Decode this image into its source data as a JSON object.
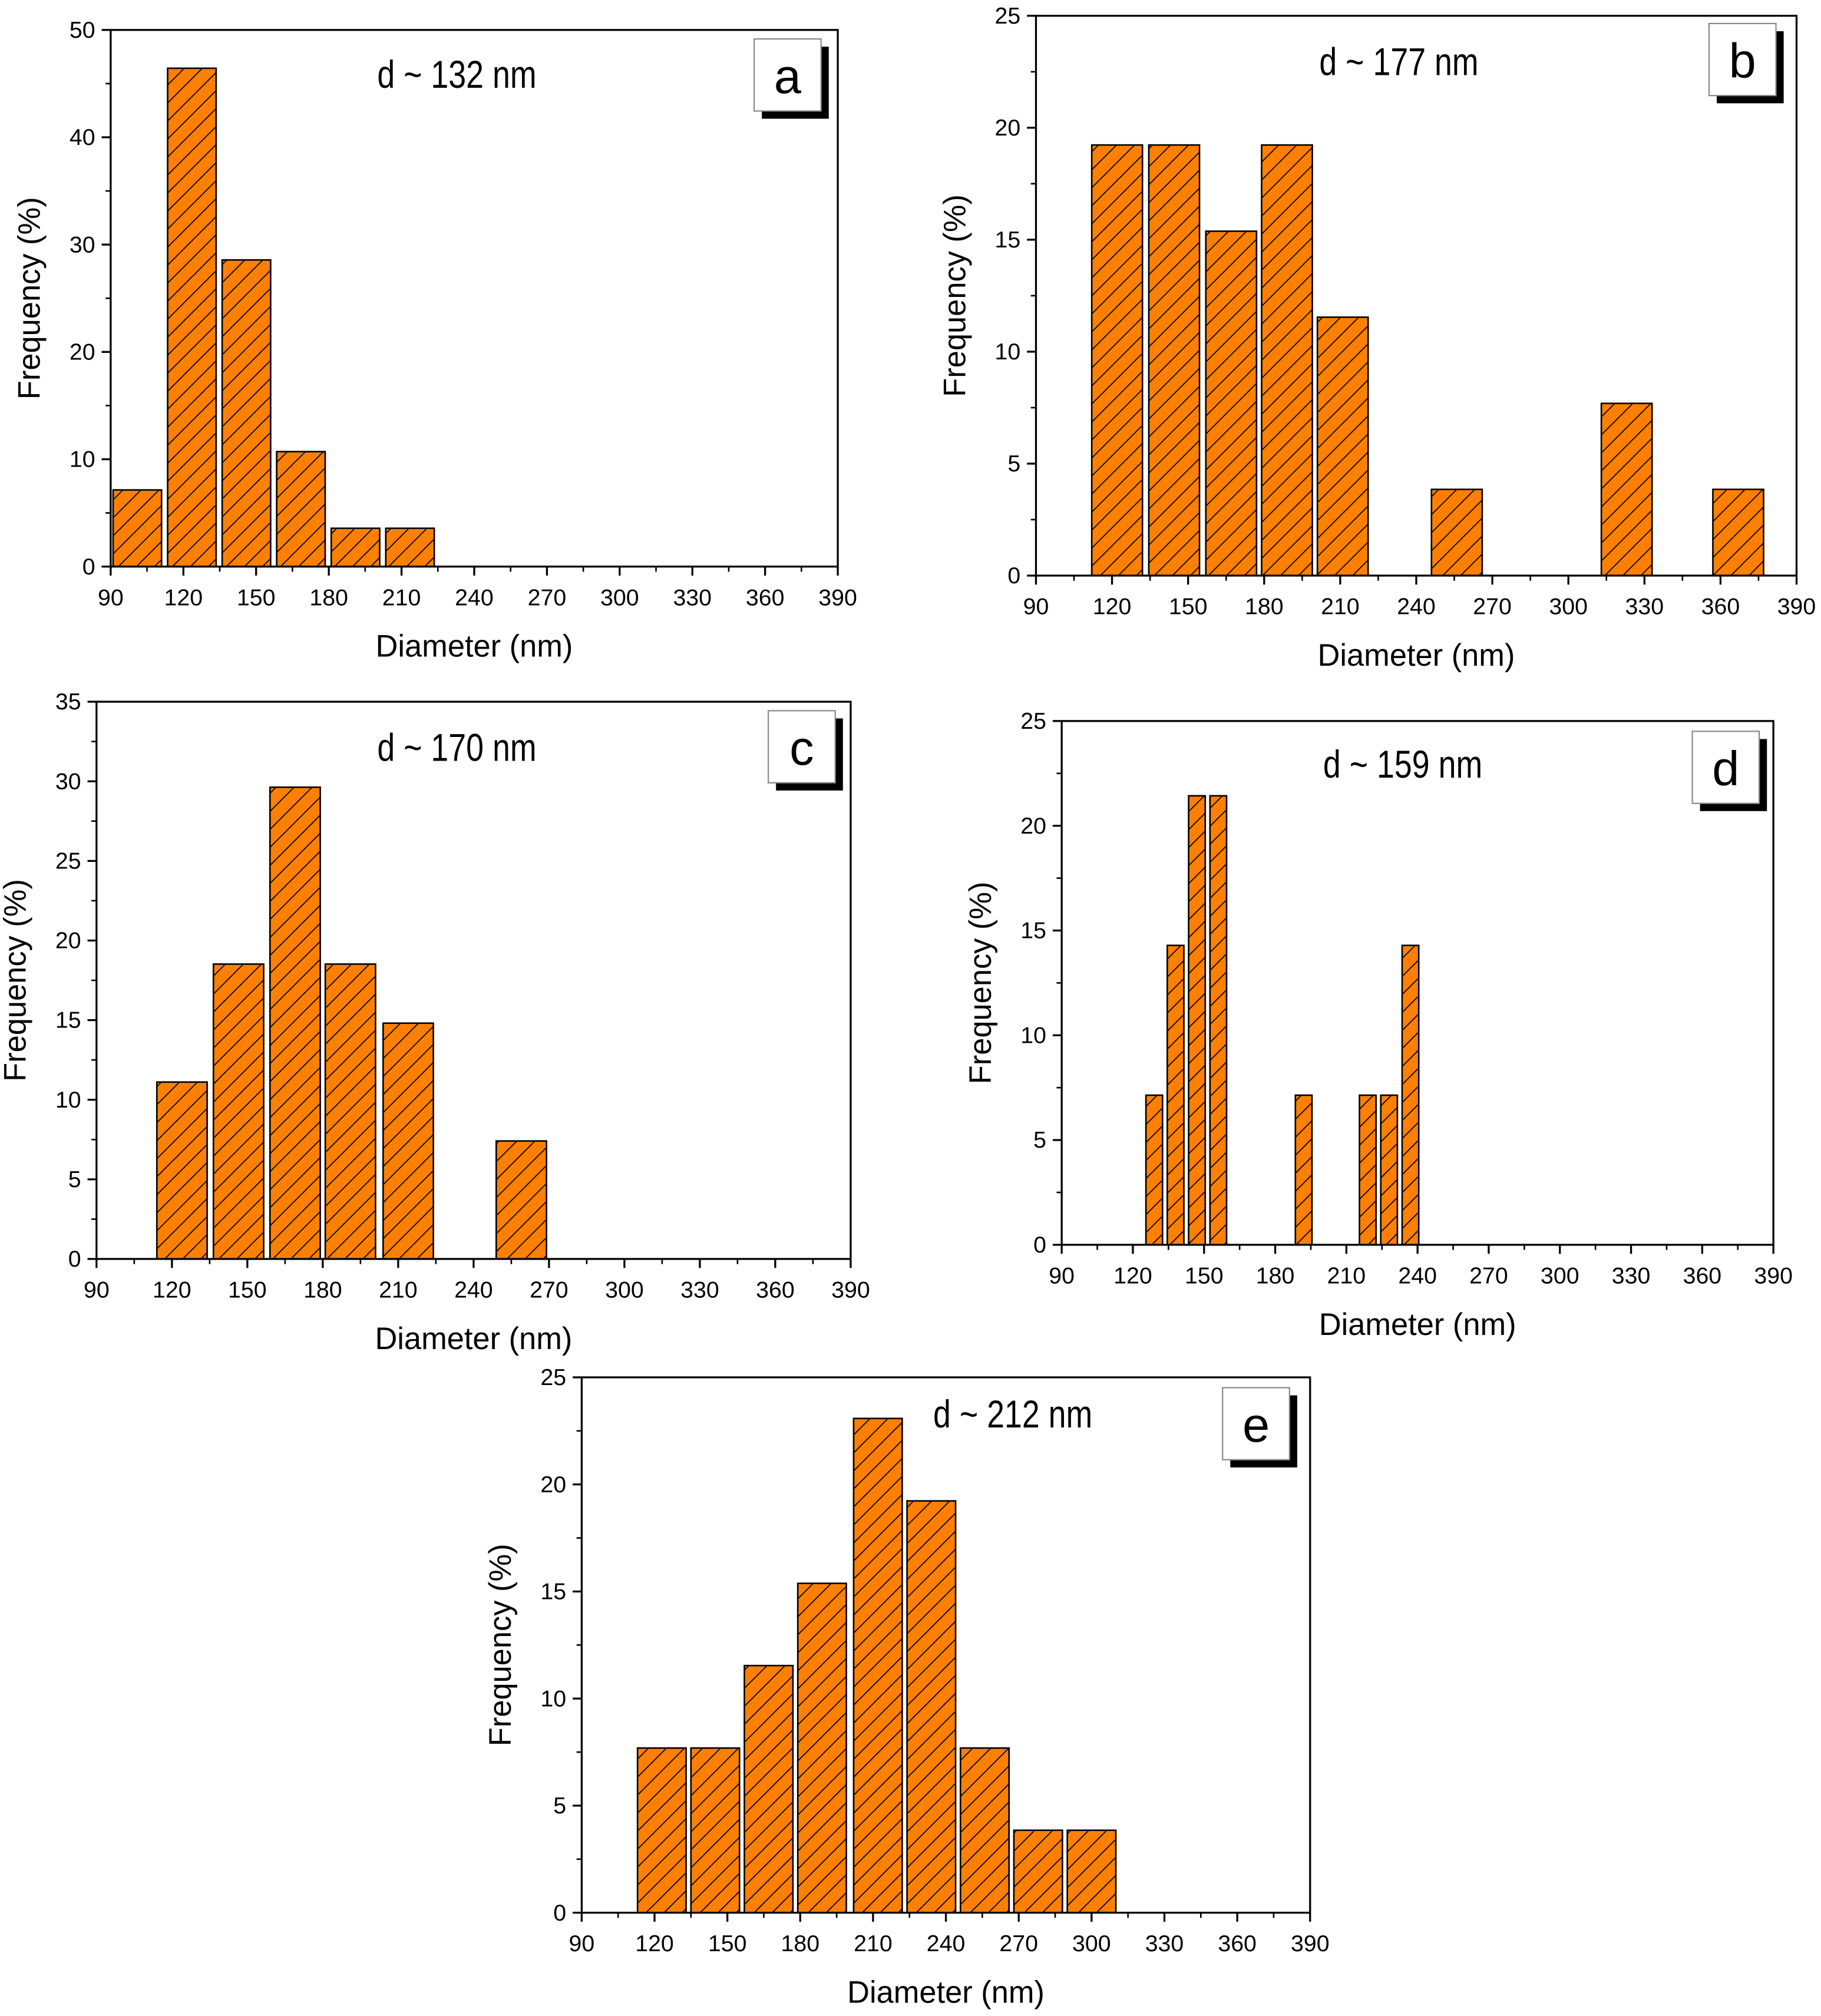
{
  "chart_data": [
    {
      "id": "a",
      "type": "bar",
      "panel_label": "a",
      "annotation": "d ~ 132 nm",
      "xlabel": "Diameter (nm)",
      "ylabel": "Frequency (%)",
      "xlim": [
        90,
        390
      ],
      "ylim": [
        0,
        50
      ],
      "xticks": [
        90,
        120,
        150,
        180,
        210,
        240,
        270,
        300,
        330,
        360,
        390
      ],
      "yticks": [
        0,
        10,
        20,
        30,
        40,
        50
      ],
      "bin_width": 20,
      "x": [
        101,
        123.5,
        146,
        168.5,
        191,
        213.5
      ],
      "values": [
        7.14,
        46.43,
        28.57,
        10.71,
        3.57,
        3.57
      ]
    },
    {
      "id": "b",
      "type": "bar",
      "panel_label": "b",
      "annotation": "d ~ 177 nm",
      "xlabel": "Diameter (nm)",
      "ylabel": "Frequency (%)",
      "xlim": [
        90,
        390
      ],
      "ylim": [
        0,
        25
      ],
      "xticks": [
        90,
        120,
        150,
        180,
        210,
        240,
        270,
        300,
        330,
        360,
        390
      ],
      "yticks": [
        0,
        5,
        10,
        15,
        20,
        25
      ],
      "bin_width": 20,
      "x": [
        122,
        144.5,
        167,
        189,
        211,
        256,
        323,
        367
      ],
      "values": [
        19.23,
        19.23,
        15.38,
        19.23,
        11.54,
        3.85,
        7.69,
        3.85
      ]
    },
    {
      "id": "c",
      "type": "bar",
      "panel_label": "c",
      "annotation": "d ~ 170 nm",
      "xlabel": "Diameter (nm)",
      "ylabel": "Frequency (%)",
      "xlim": [
        90,
        390
      ],
      "ylim": [
        0,
        35
      ],
      "xticks": [
        90,
        120,
        150,
        180,
        210,
        240,
        270,
        300,
        330,
        360,
        390
      ],
      "yticks": [
        0,
        5,
        10,
        15,
        20,
        25,
        30,
        35
      ],
      "bin_width": 20,
      "x": [
        124,
        146.5,
        169,
        191,
        214,
        259
      ],
      "values": [
        11.11,
        18.52,
        29.63,
        18.52,
        14.81,
        7.41
      ]
    },
    {
      "id": "d",
      "type": "bar",
      "panel_label": "d",
      "annotation": "d ~ 159 nm",
      "xlabel": "Diameter (nm)",
      "ylabel": "Frequency (%)",
      "xlim": [
        90,
        390
      ],
      "ylim": [
        0,
        25
      ],
      "xticks": [
        90,
        120,
        150,
        180,
        210,
        240,
        270,
        300,
        330,
        360,
        390
      ],
      "yticks": [
        0,
        5,
        10,
        15,
        20,
        25
      ],
      "bin_width": 7,
      "x": [
        129,
        138,
        147,
        156,
        192,
        219,
        228,
        237
      ],
      "values": [
        7.14,
        14.29,
        21.43,
        21.43,
        7.14,
        7.14,
        7.14,
        14.29
      ]
    },
    {
      "id": "e",
      "type": "bar",
      "panel_label": "e",
      "annotation": "d ~ 212 nm",
      "xlabel": "Diameter (nm)",
      "ylabel": "Frequency (%)",
      "xlim": [
        90,
        390
      ],
      "ylim": [
        0,
        25
      ],
      "xticks": [
        90,
        120,
        150,
        180,
        210,
        240,
        270,
        300,
        330,
        360,
        390
      ],
      "yticks": [
        0,
        5,
        10,
        15,
        20,
        25
      ],
      "bin_width": 20,
      "x": [
        123,
        145,
        167,
        189,
        212,
        234,
        256,
        278,
        300
      ],
      "values": [
        7.69,
        7.69,
        11.54,
        15.38,
        23.08,
        19.23,
        7.69,
        3.85,
        3.85
      ]
    }
  ],
  "colors": {
    "bar_fill": "#ff8000",
    "bar_stroke": "#000000",
    "hatch": "#000000"
  }
}
